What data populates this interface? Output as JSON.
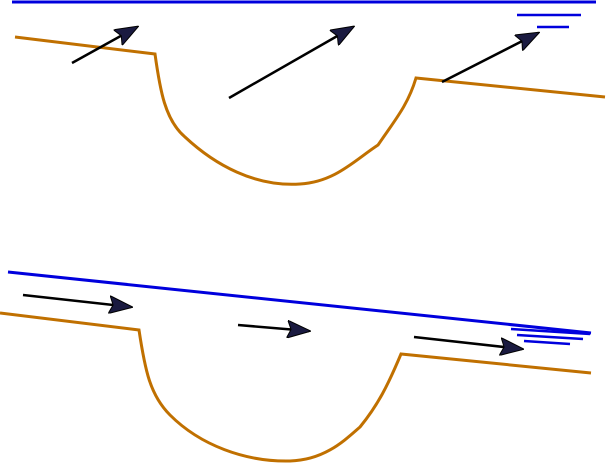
{
  "diagram": {
    "colors": {
      "water_surface": "#0000dd",
      "channel_bed": "#c07000",
      "arrow_line": "#000000",
      "arrow_head": "#1a1a40"
    },
    "panels": [
      {
        "name": "upper-panel",
        "flow": "deep-channel-upward-arrows"
      },
      {
        "name": "lower-panel",
        "flow": "sloped-surface-horizontal-arrows"
      }
    ]
  }
}
